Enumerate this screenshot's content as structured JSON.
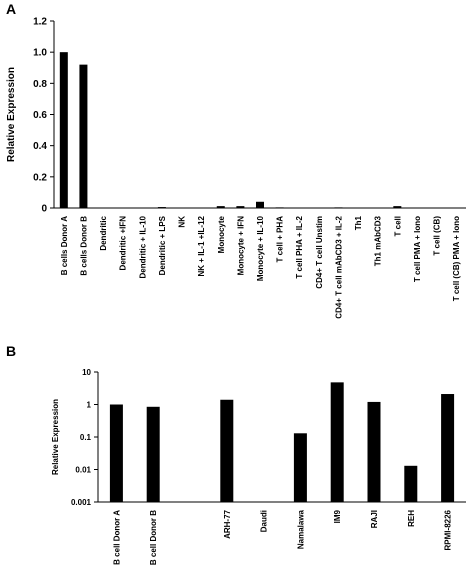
{
  "chart_data": [
    {
      "panel": "A",
      "type": "bar",
      "ylabel": "Relative Expression",
      "ylim": [
        0,
        1.2
      ],
      "yticks": [
        "0",
        "0.2",
        "0.4",
        "0.6",
        "0.8",
        "1.0",
        "1.2"
      ],
      "grid": false,
      "categories": [
        "B cells Donor A",
        "B cells Donor B",
        "Dendritic",
        "Dendritic +IFN",
        "Dendritic + IL-10",
        "Dendritic + LPS",
        "NK",
        "NK + IL-1 +IL-12",
        "Monocyte",
        "Monocyte + IFN",
        "Monocyte + IL-10",
        "T cell + PHA",
        "T cell PHA + IL-2",
        "CD4+ T cell Unstim",
        "CD4+ T cell mAbCD3 + IL-2",
        "Th1",
        "Th1 mAbCD3",
        "T cell",
        "T cell PMA + Iono",
        "T cell (CB)",
        "T cell (CB) PMA + Iono"
      ],
      "values": [
        1.0,
        0.92,
        0.002,
        0.002,
        0.002,
        0.006,
        0.002,
        0.002,
        0.012,
        0.012,
        0.04,
        0.004,
        0.001,
        0.001,
        0.004,
        0.001,
        0.001,
        0.012,
        0.001,
        0.001,
        0.001
      ]
    },
    {
      "panel": "B",
      "type": "bar",
      "ylabel": "Relative Expression",
      "yscale": "log",
      "ylim": [
        0.001,
        10
      ],
      "yticks": [
        "0.001",
        "0.01",
        "0.1",
        "1",
        "10"
      ],
      "grid": false,
      "categories": [
        "B cell Donor A",
        "B cell Donor B",
        "",
        "ARH-77",
        "Daudi",
        "Namalawa",
        "IM9",
        "RAJI",
        "REH",
        "RPMI-8226"
      ],
      "values": [
        1.0,
        0.85,
        null,
        1.4,
        null,
        0.13,
        4.8,
        1.2,
        0.013,
        2.1
      ]
    }
  ]
}
